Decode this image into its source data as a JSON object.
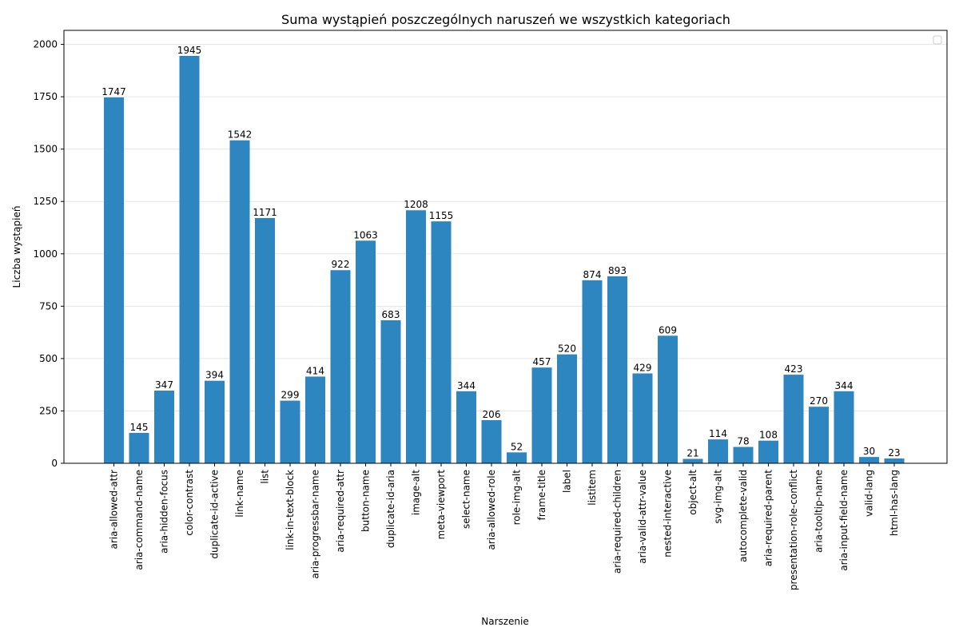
{
  "chart_data": {
    "type": "bar",
    "title": "Suma wystąpień poszczególnych naruszeń we wszystkich kategoriach",
    "xlabel": "Narszenie",
    "ylabel": "Liczba wystąpień",
    "categories": [
      "aria-allowed-attr",
      "aria-command-name",
      "aria-hidden-focus",
      "color-contrast",
      "duplicate-id-active",
      "link-name",
      "list",
      "link-in-text-block",
      "aria-progressbar-name",
      "aria-required-attr",
      "button-name",
      "duplicate-id-aria",
      "image-alt",
      "meta-viewport",
      "select-name",
      "aria-allowed-role",
      "role-img-alt",
      "frame-title",
      "label",
      "listitem",
      "aria-required-children",
      "aria-valid-attr-value",
      "nested-interactive",
      "object-alt",
      "svg-img-alt",
      "autocomplete-valid",
      "aria-required-parent",
      "presentation-role-conflict",
      "aria-tooltip-name",
      "aria-input-field-name",
      "valid-lang",
      "html-has-lang"
    ],
    "values": [
      1747,
      145,
      347,
      1945,
      394,
      1542,
      1171,
      299,
      414,
      922,
      1063,
      683,
      1208,
      1155,
      344,
      206,
      52,
      457,
      520,
      874,
      893,
      429,
      609,
      21,
      114,
      78,
      108,
      423,
      270,
      344,
      30,
      23
    ],
    "yticks": [
      0,
      250,
      500,
      750,
      1000,
      1250,
      1500,
      1750,
      2000
    ],
    "ylim": [
      0,
      2067
    ],
    "grid": "y",
    "legend": "top-right (empty)",
    "bar_color": "#2e86c1"
  }
}
